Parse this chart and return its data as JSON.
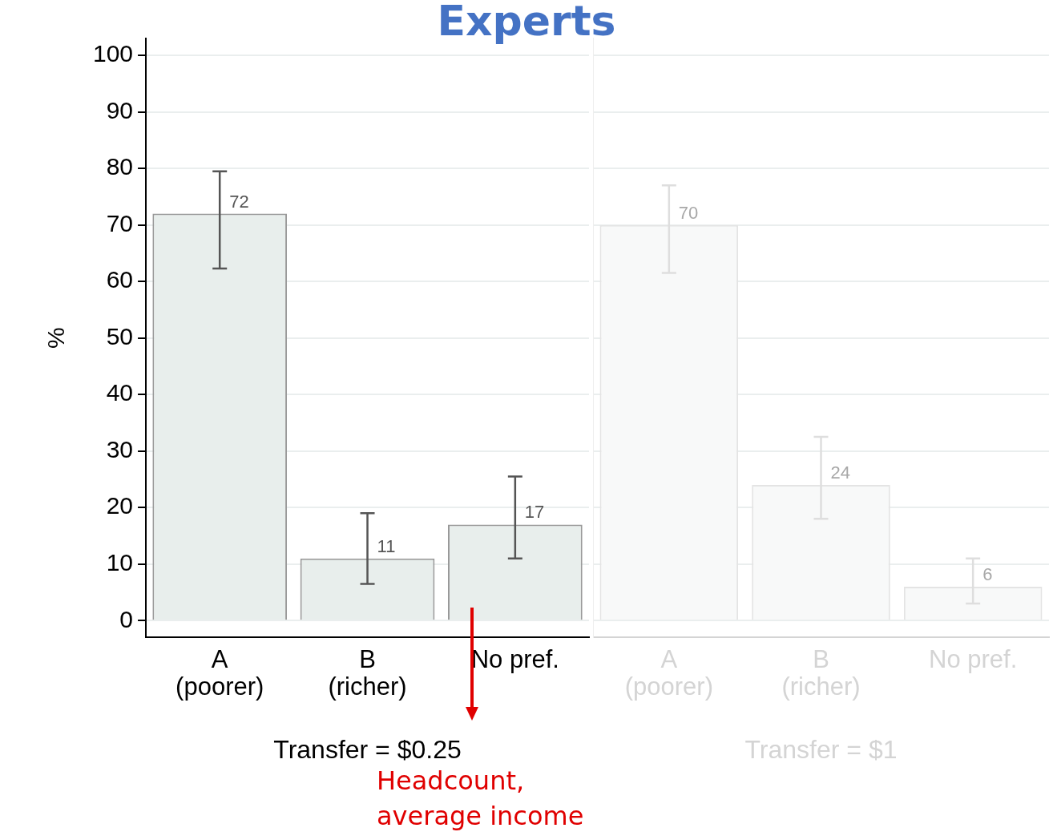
{
  "chart_data": [
    {
      "type": "bar",
      "title": "Experts",
      "categories": [
        "A\n(poorer)",
        "B\n(richer)",
        "No pref."
      ],
      "values": [
        72,
        11,
        17
      ],
      "errors": [
        [
          62.3,
          79.5
        ],
        [
          6.5,
          19
        ],
        [
          11,
          25.5
        ]
      ],
      "data_labels": true,
      "color": "#e8eeec",
      "ylabel": "%",
      "xlabel": "Transfer = $0.25",
      "ylim": [
        -3,
        103
      ],
      "yticks": [
        0,
        10,
        20,
        30,
        40,
        50,
        60,
        70,
        80,
        90,
        100
      ],
      "grid": "y",
      "legend": false,
      "annotations": [
        "Headcount, average income"
      ]
    },
    {
      "type": "bar",
      "categories": [
        "A\n(poorer)",
        "B\n(richer)",
        "No pref."
      ],
      "values": [
        70,
        24,
        6
      ],
      "errors": [
        [
          61.5,
          77
        ],
        [
          18,
          32.5
        ],
        [
          3,
          11
        ]
      ],
      "data_labels": true,
      "color": "#f8f9f9",
      "xlabel": "Transfer = $1",
      "ylim": [
        -3,
        103
      ],
      "yticks": [
        0,
        10,
        20,
        30,
        40,
        50,
        60,
        70,
        80,
        90,
        100
      ],
      "grid": "y",
      "legend": false,
      "tick_labels": "x"
    }
  ]
}
